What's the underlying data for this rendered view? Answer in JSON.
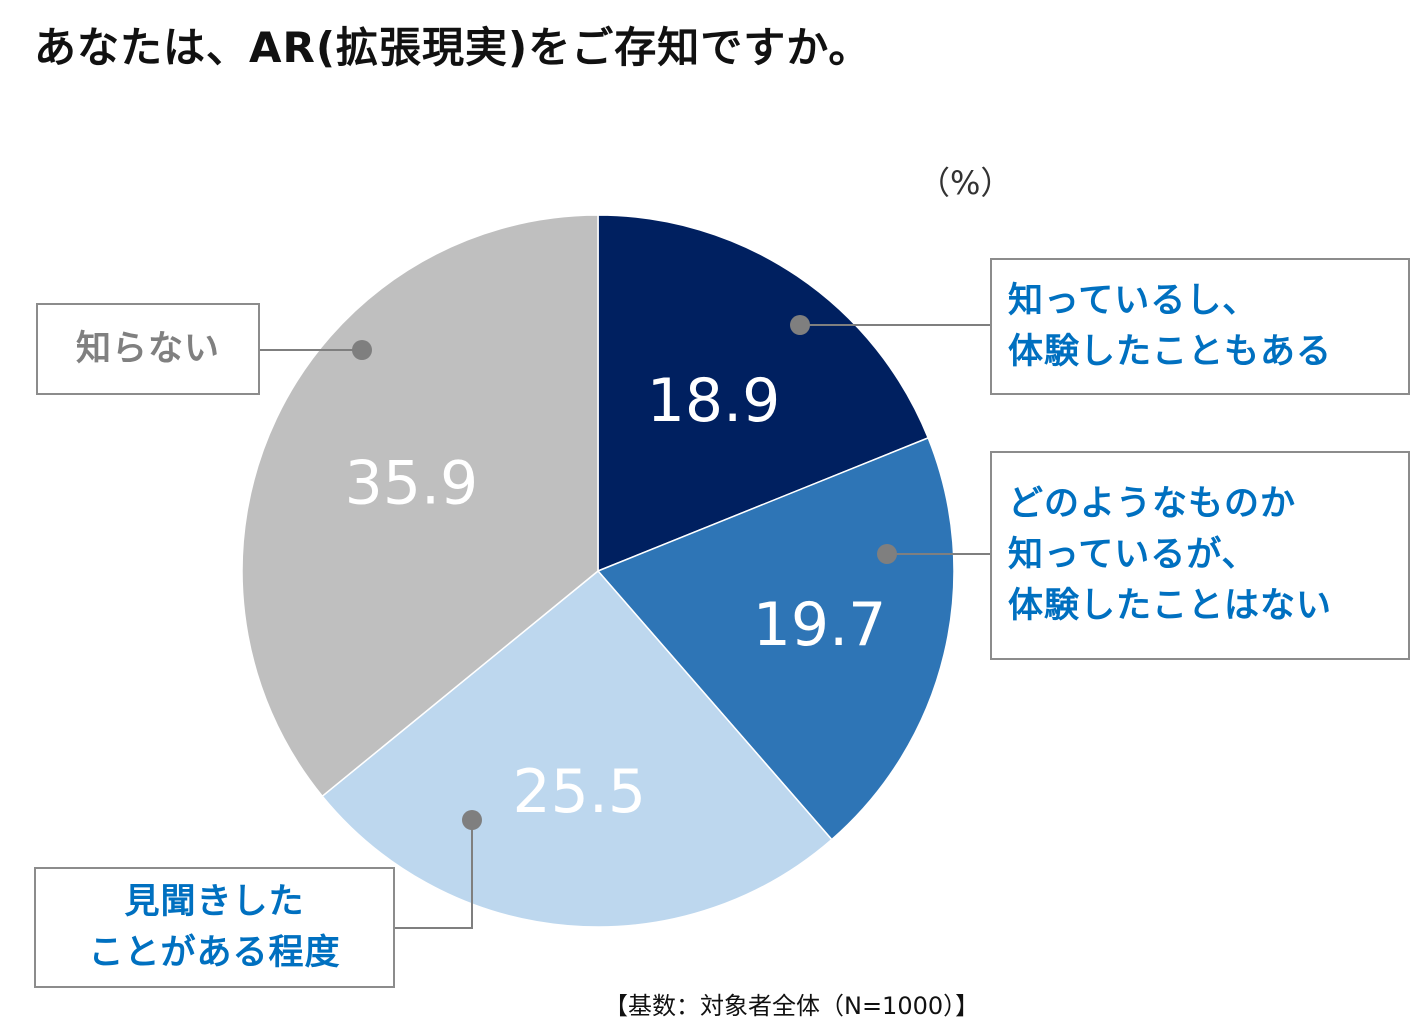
{
  "title": "あなたは、AR(拡張現実)をご存知ですか。",
  "unit_label": "（%）",
  "base_note": "【基数：対象者全体（N=1000）】",
  "chart_data": {
    "type": "pie",
    "start_angle_deg": 0,
    "direction": "clockwise",
    "slices": [
      {
        "label": "知っているし、\n体験したこともある",
        "value": 18.9,
        "value_label": "18.9",
        "color": "#002060",
        "label_color": "#0070c0"
      },
      {
        "label": "どのようなものか\n知っているが、\n体験したことはない",
        "value": 19.7,
        "value_label": "19.7",
        "color": "#2e75b6",
        "label_color": "#0070c0"
      },
      {
        "label": "見聞きした\nことがある程度",
        "value": 25.5,
        "value_label": "25.5",
        "color": "#bdd7ee",
        "label_color": "#0070c0"
      },
      {
        "label": "知らない",
        "value": 35.9,
        "value_label": "35.9",
        "color": "#bfbfbf",
        "label_color": "#808080"
      }
    ]
  },
  "colors": {
    "leader_line": "#7f7f7f",
    "leader_dot": "#7f7f7f",
    "box_border": "#8c8c8c",
    "value_text": "#ffffff"
  }
}
